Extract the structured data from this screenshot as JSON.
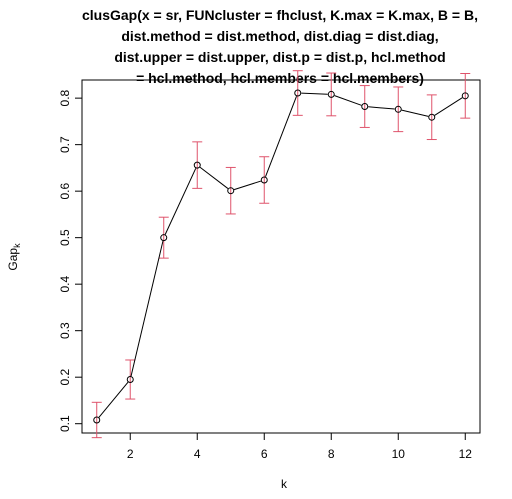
{
  "chart_data": {
    "type": "line",
    "title_lines": [
      "clusGap(x = sr, FUNcluster = fhclust, K.max = K.max, B = B,",
      "dist.method = dist.method, dist.diag = dist.diag,",
      "dist.upper = dist.upper, dist.p = dist.p, hcl.method",
      "= hcl.method, hcl.members = hcl.members)"
    ],
    "xlabel": "k",
    "ylabel_main": "Gap",
    "ylabel_sub": "k",
    "x": [
      1,
      2,
      3,
      4,
      5,
      6,
      7,
      8,
      9,
      10,
      11,
      12
    ],
    "y": [
      0.108,
      0.195,
      0.5,
      0.656,
      0.601,
      0.624,
      0.811,
      0.808,
      0.782,
      0.776,
      0.759,
      0.805
    ],
    "se": [
      0.038,
      0.042,
      0.044,
      0.05,
      0.05,
      0.05,
      0.048,
      0.046,
      0.045,
      0.048,
      0.048,
      0.048
    ],
    "xlim": [
      0.56,
      12.44
    ],
    "ylim": [
      0.08,
      0.839
    ],
    "xticks": [
      2,
      4,
      6,
      8,
      10,
      12
    ],
    "yticks": [
      0.1,
      0.2,
      0.3,
      0.4,
      0.5,
      0.6,
      0.7,
      0.8
    ],
    "xtick_labels": [
      "2",
      "4",
      "6",
      "8",
      "10",
      "12"
    ],
    "ytick_labels": [
      "0.1",
      "0.2",
      "0.3",
      "0.4",
      "0.5",
      "0.6",
      "0.7",
      "0.8"
    ],
    "line_color": "#000000",
    "point_color": "#000000",
    "errorbar_color": "#DF536B",
    "grid": false,
    "legend": "none"
  }
}
